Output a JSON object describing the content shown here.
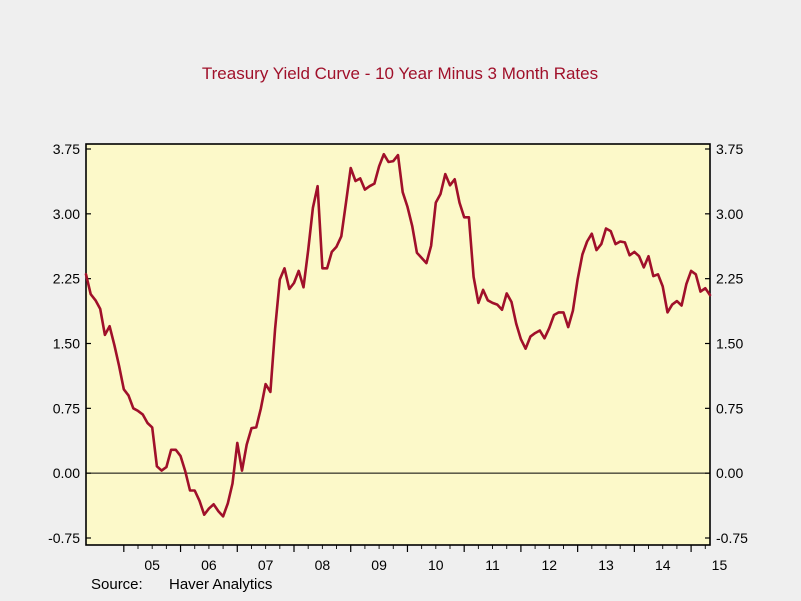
{
  "chart_data": {
    "type": "line",
    "title": "Treasury Yield Curve - 10 Year Minus 3 Month Rates",
    "source_label": "Source:",
    "source_name": "Haver Analytics",
    "xlabel": "",
    "ylabel": "",
    "ylim": [
      -0.75,
      3.75
    ],
    "yticks": [
      "-0.75",
      "0.00",
      "0.75",
      "1.50",
      "2.25",
      "3.00",
      "3.75"
    ],
    "xticks": [
      "05",
      "06",
      "07",
      "08",
      "09",
      "10",
      "11",
      "12",
      "13",
      "14",
      "15"
    ],
    "x_start": "2004-05",
    "x_end": "2015-05",
    "reference_line": 0,
    "colors": {
      "line": "#a0102a",
      "title": "#a0102a",
      "plot_background": "#fcf9c9",
      "page_background": "#efefef"
    },
    "series": [
      {
        "x": [
          "2004-05",
          "2004-06",
          "2004-07",
          "2004-08",
          "2004-09",
          "2004-10",
          "2004-11",
          "2004-12",
          "2005-01",
          "2005-02",
          "2005-03",
          "2005-04",
          "2005-05",
          "2005-06",
          "2005-07",
          "2005-08",
          "2005-09",
          "2005-10",
          "2005-11",
          "2005-12",
          "2006-01",
          "2006-02",
          "2006-03",
          "2006-04",
          "2006-05",
          "2006-06",
          "2006-07",
          "2006-08",
          "2006-09",
          "2006-10",
          "2006-11",
          "2006-12",
          "2007-01",
          "2007-02",
          "2007-03",
          "2007-04",
          "2007-05",
          "2007-06",
          "2007-07",
          "2007-08",
          "2007-09",
          "2007-10",
          "2007-11",
          "2007-12",
          "2008-01",
          "2008-02",
          "2008-03",
          "2008-04",
          "2008-05",
          "2008-06",
          "2008-07",
          "2008-08",
          "2008-09",
          "2008-10",
          "2008-11",
          "2008-12",
          "2009-01",
          "2009-02",
          "2009-03",
          "2009-04",
          "2009-05",
          "2009-06",
          "2009-07",
          "2009-08",
          "2009-09",
          "2009-10",
          "2009-11",
          "2009-12",
          "2010-01",
          "2010-02",
          "2010-03",
          "2010-04",
          "2010-05",
          "2010-06",
          "2010-07",
          "2010-08",
          "2010-09",
          "2010-10",
          "2010-11",
          "2010-12",
          "2011-01",
          "2011-02",
          "2011-03",
          "2011-04",
          "2011-05",
          "2011-06",
          "2011-07",
          "2011-08",
          "2011-09",
          "2011-10",
          "2011-11",
          "2011-12",
          "2012-01",
          "2012-02",
          "2012-03",
          "2012-04",
          "2012-05",
          "2012-06",
          "2012-07",
          "2012-08",
          "2012-09",
          "2012-10",
          "2012-11",
          "2012-12",
          "2013-01",
          "2013-02",
          "2013-03",
          "2013-04",
          "2013-05",
          "2013-06",
          "2013-07",
          "2013-08",
          "2013-09",
          "2013-10",
          "2013-11",
          "2013-12",
          "2014-01",
          "2014-02",
          "2014-03",
          "2014-04",
          "2014-05",
          "2014-06",
          "2014-07",
          "2014-08",
          "2014-09",
          "2014-10",
          "2014-11",
          "2014-12",
          "2015-01",
          "2015-02",
          "2015-03",
          "2015-04",
          "2015-05"
        ],
        "values": [
          2.3,
          2.07,
          2.0,
          1.9,
          1.6,
          1.7,
          1.48,
          1.24,
          0.97,
          0.9,
          0.75,
          0.72,
          0.68,
          0.58,
          0.53,
          0.08,
          0.03,
          0.07,
          0.27,
          0.27,
          0.2,
          0.02,
          -0.2,
          -0.2,
          -0.32,
          -0.48,
          -0.41,
          -0.36,
          -0.44,
          -0.5,
          -0.35,
          -0.12,
          0.35,
          0.03,
          0.33,
          0.52,
          0.53,
          0.75,
          1.03,
          0.94,
          1.67,
          2.24,
          2.37,
          2.13,
          2.2,
          2.34,
          2.15,
          2.58,
          3.07,
          3.32,
          2.37,
          2.37,
          2.56,
          2.62,
          2.74,
          3.13,
          3.53,
          3.38,
          3.41,
          3.28,
          3.32,
          3.35,
          3.55,
          3.69,
          3.6,
          3.61,
          3.68,
          3.25,
          3.08,
          2.86,
          2.55,
          2.49,
          2.43,
          2.63,
          3.13,
          3.23,
          3.46,
          3.33,
          3.4,
          3.13,
          2.96,
          2.96,
          2.27,
          1.97,
          2.12,
          2.0,
          1.97,
          1.95,
          1.89,
          2.08,
          1.98,
          1.73,
          1.55,
          1.44,
          1.58,
          1.62,
          1.65,
          1.56,
          1.68,
          1.83,
          1.86,
          1.86,
          1.69,
          1.88,
          2.24,
          2.53,
          2.68,
          2.77,
          2.58,
          2.65,
          2.83,
          2.8,
          2.65,
          2.68,
          2.67,
          2.52,
          2.56,
          2.51,
          2.38,
          2.51,
          2.28,
          2.3,
          2.16,
          1.86,
          1.95,
          1.99,
          1.94,
          2.19,
          2.34,
          2.3,
          2.1,
          2.14,
          2.06
        ]
      }
    ]
  }
}
